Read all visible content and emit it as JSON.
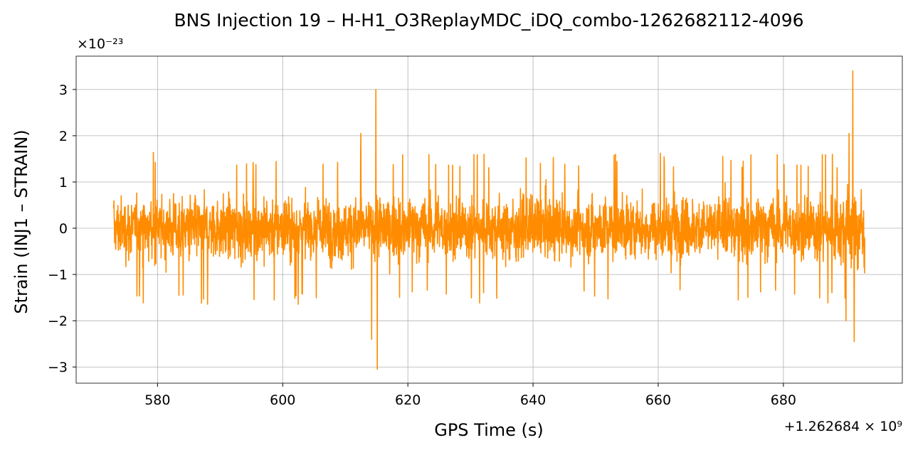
{
  "chart_data": {
    "type": "line",
    "title": "BNS Injection 19 – H-H1_O3ReplayMDC_iDQ_combo-1262682112-4096",
    "xlabel": "GPS Time (s)",
    "ylabel": "Strain (INJ1 – STRAIN)",
    "y_multiplier_label": "×10⁻²³",
    "x_offset_label": "+1.262684 × 10⁹",
    "x_offset": 1262684000,
    "y_scale": 1e-23,
    "xlim": [
      567,
      699
    ],
    "ylim": [
      -3.35,
      3.72
    ],
    "x_ticks": [
      580,
      600,
      620,
      640,
      660,
      680
    ],
    "x_tick_labels": [
      "580",
      "600",
      "620",
      "640",
      "660",
      "680"
    ],
    "y_ticks": [
      -3,
      -2,
      -1,
      0,
      1,
      2,
      3
    ],
    "y_tick_labels": [
      "−3",
      "−2",
      "−1",
      "0",
      "1",
      "2",
      "3"
    ],
    "grid": true,
    "series": [
      {
        "color": "#ff8c00",
        "x_range": [
          573.0,
          693.0
        ],
        "typical_peak": 1.2,
        "notable_excursions": [
          {
            "x": 612.5,
            "y": 2.05
          },
          {
            "x": 614.9,
            "y": 3.0
          },
          {
            "x": 615.1,
            "y": -3.05
          },
          {
            "x": 614.2,
            "y": -2.4
          },
          {
            "x": 690.5,
            "y": 2.05
          },
          {
            "x": 691.1,
            "y": 3.4
          },
          {
            "x": 691.3,
            "y": -2.45
          },
          {
            "x": 690.0,
            "y": -2.0
          }
        ]
      }
    ]
  }
}
